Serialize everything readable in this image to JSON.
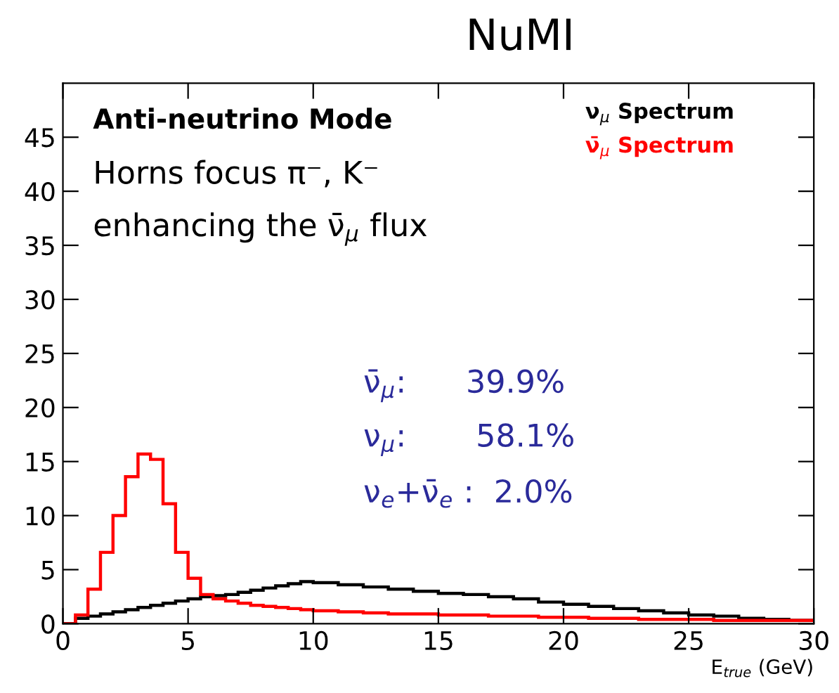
{
  "chart_data": {
    "type": "histogram",
    "title": "NuMI",
    "xlabel": "E$_{true}$ (GeV)",
    "bins": [
      0,
      0.5,
      1,
      1.5,
      2,
      2.5,
      3,
      3.5,
      4,
      4.5,
      5,
      5.5,
      6,
      6.5,
      7,
      7.5,
      8,
      8.5,
      9,
      9.5,
      10,
      11,
      12,
      13,
      14,
      15,
      16,
      17,
      18,
      19,
      20,
      21,
      22,
      23,
      24,
      25,
      26,
      27,
      28,
      29,
      30
    ],
    "series": [
      {
        "name": "ν$_{μ}$ Spectrum",
        "color": "#000000",
        "values": [
          0,
          0.5,
          0.7,
          0.9,
          1.1,
          1.3,
          1.5,
          1.7,
          1.9,
          2.1,
          2.3,
          2.5,
          2.6,
          2.7,
          2.9,
          3.1,
          3.3,
          3.5,
          3.7,
          3.9,
          3.8,
          3.6,
          3.4,
          3.2,
          3.0,
          2.8,
          2.7,
          2.5,
          2.3,
          2.0,
          1.8,
          1.6,
          1.4,
          1.2,
          1.0,
          0.8,
          0.7,
          0.5,
          0.4,
          0.3
        ]
      },
      {
        "name": "ν̄$_{μ}$ Spectrum",
        "color": "#ff0000",
        "values": [
          0,
          0.8,
          3.2,
          6.6,
          10.0,
          13.6,
          15.7,
          15.2,
          11.1,
          6.6,
          4.2,
          2.7,
          2.3,
          2.1,
          1.9,
          1.7,
          1.6,
          1.5,
          1.4,
          1.3,
          1.2,
          1.1,
          1.0,
          0.9,
          0.9,
          0.8,
          0.8,
          0.7,
          0.7,
          0.6,
          0.6,
          0.5,
          0.5,
          0.4,
          0.4,
          0.4,
          0.3,
          0.3,
          0.3,
          0.3
        ]
      }
    ],
    "xlim": [
      0,
      30
    ],
    "xticks": [
      0,
      5,
      10,
      15,
      20,
      25,
      30
    ],
    "ylim": [
      0,
      50
    ],
    "yticks": [
      0,
      5,
      10,
      15,
      20,
      25,
      30,
      35,
      40,
      45
    ],
    "legend": "top right",
    "grid": false,
    "annotations": [
      "Anti-neutrino Mode",
      "Horns focus π⁻, K⁻",
      "enhancing the ν̄$_{μ}$ flux",
      "ν̄$_{μ}$:      39.9%",
      "ν$_{μ}$:       58.1%",
      "ν$_{e}$+ν̄$_{e}$ :  2.0%"
    ]
  }
}
